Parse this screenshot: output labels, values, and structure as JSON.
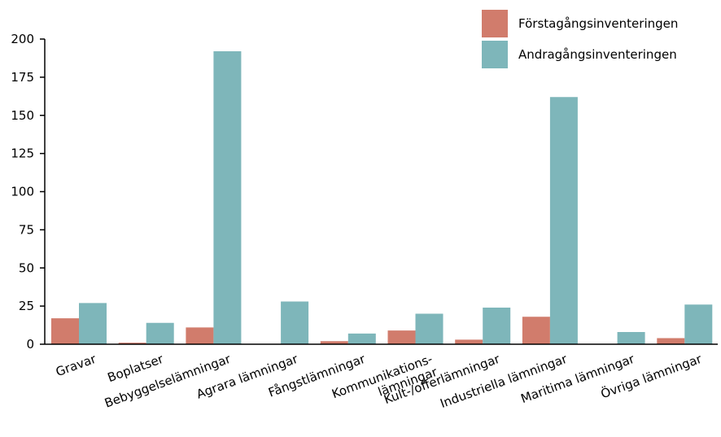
{
  "chart_data": {
    "type": "bar",
    "title": "",
    "xlabel": "",
    "ylabel": "",
    "ylim": [
      0,
      200
    ],
    "yticks": [
      0,
      25,
      50,
      75,
      100,
      125,
      150,
      175,
      200
    ],
    "grid": false,
    "legend_position": "top-right",
    "categories": [
      [
        "Gravar"
      ],
      [
        "Boplatser"
      ],
      [
        "Bebyggelselämningar"
      ],
      [
        "Agrara lämningar"
      ],
      [
        "Fångstlämningar"
      ],
      [
        "Kommunikations-",
        "lämningar"
      ],
      [
        "Kult-/offerlämningar"
      ],
      [
        "Industriella lämningar"
      ],
      [
        "Maritima lämningar"
      ],
      [
        "Övriga lämningar"
      ]
    ],
    "series": [
      {
        "name": "Förstagångsinventeringen",
        "color": "#d17c6c",
        "values": [
          17,
          1,
          11,
          0,
          2,
          9,
          3,
          18,
          0,
          4
        ]
      },
      {
        "name": "Andragångsinventeringen",
        "color": "#7eb6ba",
        "values": [
          27,
          14,
          192,
          28,
          7,
          20,
          24,
          162,
          8,
          26
        ]
      }
    ]
  }
}
